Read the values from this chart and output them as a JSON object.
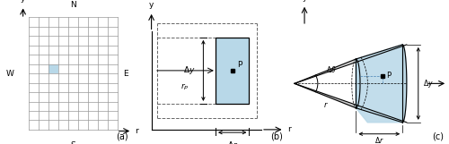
{
  "fig_width": 5.0,
  "fig_height": 1.61,
  "dpi": 100,
  "bg_color": "#ffffff",
  "grid_color": "#999999",
  "highlight_color": "#b8d8e8",
  "dashed_color": "#666666",
  "gray_color": "#c8c8c8",
  "panel_a_label": "(a)",
  "panel_b_label": "(b)",
  "panel_c_label": "(c)",
  "grid_nx": 9,
  "grid_ny": 12,
  "grid_hi": 2,
  "grid_hj": 6
}
